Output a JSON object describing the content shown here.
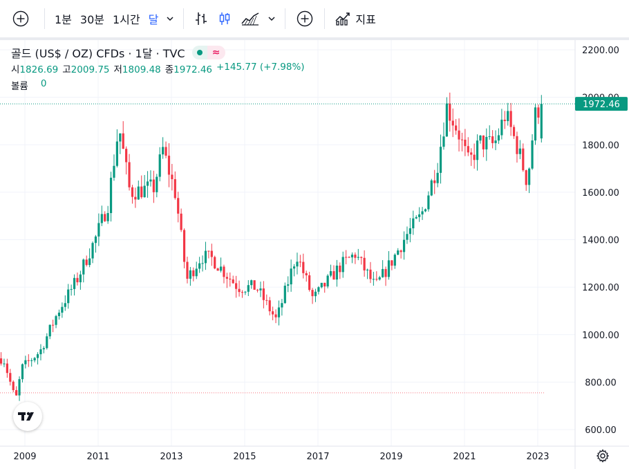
{
  "toolbar": {
    "add_symbol_icon": "plus-circle-icon",
    "intervals": [
      "1분",
      "30분",
      "1시간",
      "달"
    ],
    "active_interval": "달",
    "indicators_label": "지표"
  },
  "legend": {
    "title": "골드 (US$ / OZ) CFDs · 1달 · TVC",
    "open_label": "시",
    "open": "1826.69",
    "high_label": "고",
    "high": "2009.75",
    "low_label": "저",
    "low": "1809.48",
    "close_label": "종",
    "close": "1972.46",
    "change": "+145.77 (+7.98%)",
    "volume_label": "볼륨",
    "volume": "0"
  },
  "colors": {
    "up": "#089981",
    "down": "#f23645",
    "grid": "#f0f3fa",
    "text": "#131722"
  },
  "chart_data": {
    "type": "candlestick",
    "series_name": "골드 (US$ / OZ) CFDs",
    "x_ticks": [
      "2009",
      "2011",
      "2013",
      "2015",
      "2017",
      "2019",
      "2021",
      "2023"
    ],
    "y_ticks": [
      "600.00",
      "800.00",
      "1000.00",
      "1200.00",
      "1400.00",
      "1600.00",
      "1800.00",
      "2000.00",
      "2200.00"
    ],
    "ylim": [
      575,
      2220
    ],
    "last_price_label": "1972.46",
    "low_reference": 755,
    "anchors": [
      {
        "t": 2008.5,
        "v": 900
      },
      {
        "t": 2008.83,
        "v": 720
      },
      {
        "t": 2009.0,
        "v": 860
      },
      {
        "t": 2009.5,
        "v": 930
      },
      {
        "t": 2010.0,
        "v": 1100
      },
      {
        "t": 2010.5,
        "v": 1230
      },
      {
        "t": 2011.0,
        "v": 1400
      },
      {
        "t": 2011.35,
        "v": 1550
      },
      {
        "t": 2011.65,
        "v": 1880
      },
      {
        "t": 2011.95,
        "v": 1600
      },
      {
        "t": 2012.6,
        "v": 1620
      },
      {
        "t": 2012.85,
        "v": 1780
      },
      {
        "t": 2013.2,
        "v": 1590
      },
      {
        "t": 2013.5,
        "v": 1230
      },
      {
        "t": 2013.9,
        "v": 1330
      },
      {
        "t": 2014.2,
        "v": 1320
      },
      {
        "t": 2014.9,
        "v": 1200
      },
      {
        "t": 2015.4,
        "v": 1200
      },
      {
        "t": 2015.95,
        "v": 1060
      },
      {
        "t": 2016.5,
        "v": 1340
      },
      {
        "t": 2016.95,
        "v": 1150
      },
      {
        "t": 2017.7,
        "v": 1290
      },
      {
        "t": 2018.1,
        "v": 1340
      },
      {
        "t": 2018.65,
        "v": 1200
      },
      {
        "t": 2019.1,
        "v": 1310
      },
      {
        "t": 2019.5,
        "v": 1420
      },
      {
        "t": 2019.9,
        "v": 1500
      },
      {
        "t": 2020.35,
        "v": 1720
      },
      {
        "t": 2020.6,
        "v": 1960
      },
      {
        "t": 2020.9,
        "v": 1860
      },
      {
        "t": 2021.2,
        "v": 1720
      },
      {
        "t": 2021.5,
        "v": 1810
      },
      {
        "t": 2021.9,
        "v": 1800
      },
      {
        "t": 2022.2,
        "v": 1930
      },
      {
        "t": 2022.55,
        "v": 1780
      },
      {
        "t": 2022.8,
        "v": 1640
      },
      {
        "t": 2023.0,
        "v": 1920
      },
      {
        "t": 2023.17,
        "v": 1972
      }
    ]
  }
}
